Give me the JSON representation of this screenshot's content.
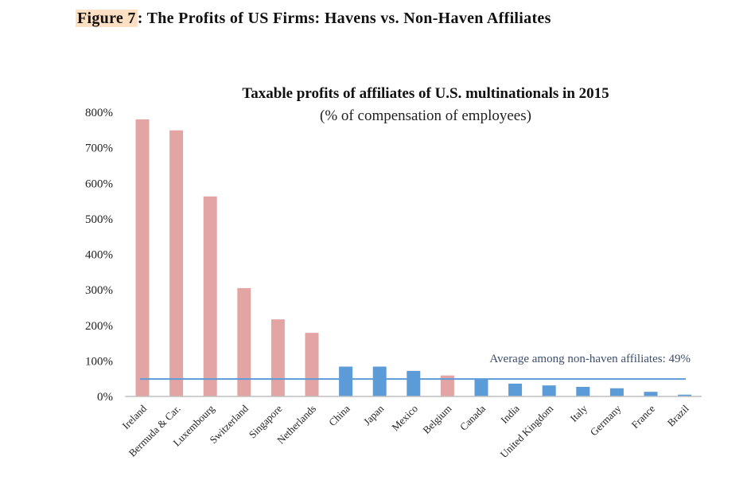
{
  "figure": {
    "label": "Figure 7",
    "rest": ": The Profits of US Firms: Havens vs. Non-Haven Affiliates"
  },
  "chart_data": {
    "type": "bar",
    "title": "Taxable profits of affiliates of U.S. multinationals in 2015",
    "subtitle": "(% of compensation of employees)",
    "xlabel": "",
    "ylabel": "",
    "ylim": [
      0,
      800
    ],
    "yticks": [
      0,
      100,
      200,
      300,
      400,
      500,
      600,
      700,
      800
    ],
    "ytick_labels": [
      "0%",
      "100%",
      "200%",
      "300%",
      "400%",
      "500%",
      "600%",
      "700%",
      "800%"
    ],
    "categories": [
      "Ireland",
      "Bermuda & Car.",
      "Luxembourg",
      "Switzerland",
      "Singapore",
      "Netherlands",
      "China",
      "Japan",
      "Mexico",
      "Belgium",
      "Canada",
      "India",
      "United Kingdom",
      "Italy",
      "Germany",
      "France",
      "Brazil"
    ],
    "values": [
      780,
      749,
      563,
      305,
      217,
      179,
      84,
      84,
      72,
      59,
      50,
      36,
      31,
      27,
      23,
      13,
      5
    ],
    "haven": [
      true,
      true,
      true,
      true,
      true,
      true,
      false,
      false,
      false,
      true,
      false,
      false,
      false,
      false,
      false,
      false,
      false
    ],
    "colors": {
      "haven": "#e3a5a3",
      "non_haven": "#5b9bd8",
      "average_line": "#5b9bd8"
    },
    "average": {
      "value": 49,
      "label": "Average among non-haven affiliates: 49%"
    },
    "grid": false
  }
}
